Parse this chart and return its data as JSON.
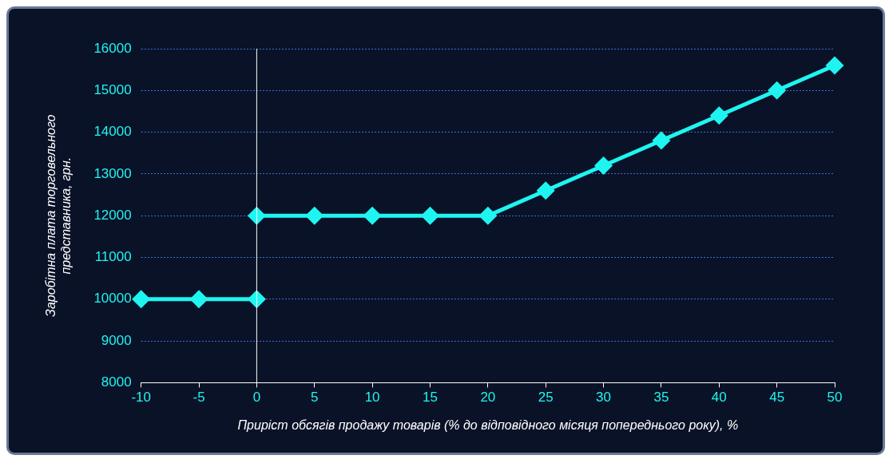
{
  "chart_data": {
    "type": "line",
    "xlabel": "Приріст обсягів продажу товарів (% до відповідного місяця попереднього року), %",
    "ylabel": "Заробітна плата торговельного представника, грн.",
    "series": [
      {
        "color": "#1ef5f0",
        "x": [
          -10,
          -5,
          0
        ],
        "values": [
          10000,
          10000,
          10000
        ]
      },
      {
        "color": "#1ef5f0",
        "x": [
          0,
          5,
          10,
          15,
          20,
          25,
          30,
          35,
          40,
          45,
          50
        ],
        "values": [
          12000,
          12000,
          12000,
          12000,
          12000,
          12600,
          13200,
          13800,
          14400,
          15000,
          15600
        ]
      }
    ],
    "xlim": [
      -10,
      50
    ],
    "xticks": [
      -10,
      -5,
      0,
      5,
      10,
      15,
      20,
      25,
      30,
      35,
      40,
      45,
      50
    ],
    "ylim": [
      8000,
      16000
    ],
    "yticks": [
      8000,
      9000,
      10000,
      11000,
      12000,
      13000,
      14000,
      15000,
      16000
    ],
    "ref_lines": [
      {
        "axis": "x",
        "value": 0,
        "color": "#ffffff"
      }
    ],
    "grid": "y",
    "legend": false,
    "marker": "diamond",
    "line_style": "solid"
  }
}
